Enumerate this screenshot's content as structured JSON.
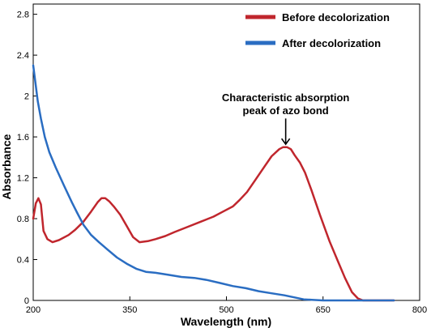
{
  "chart_data": {
    "type": "line",
    "title": "",
    "xlabel": "Wavelength (nm)",
    "ylabel": "Absorbance",
    "xlim": [
      200,
      800
    ],
    "ylim": [
      0,
      2.9
    ],
    "xticks": [
      200,
      350,
      500,
      650,
      800
    ],
    "yticks": [
      0,
      0.4,
      0.8,
      1.2,
      1.6,
      2,
      2.4,
      2.8
    ],
    "xtick_labels": [
      "200",
      "350",
      "500",
      "650",
      "800"
    ],
    "ytick_labels": [
      "0",
      "0.4",
      "0.8",
      "1.2",
      "1.6",
      "2",
      "2.4",
      "2.8"
    ],
    "grid": false,
    "legend_position": "top-right",
    "series": [
      {
        "name": "Before decolorization",
        "color": "#c0262d",
        "x": [
          200,
          204,
          208,
          212,
          216,
          222,
          230,
          240,
          255,
          265,
          278,
          290,
          300,
          306,
          312,
          318,
          325,
          335,
          345,
          355,
          365,
          378,
          390,
          405,
          420,
          440,
          460,
          480,
          495,
          510,
          520,
          532,
          545,
          558,
          570,
          582,
          588,
          594,
          600,
          606,
          614,
          622,
          632,
          645,
          660,
          672,
          684,
          695,
          704,
          712,
          730,
          760
        ],
        "values": [
          0.8,
          0.95,
          1.0,
          0.94,
          0.68,
          0.6,
          0.57,
          0.59,
          0.64,
          0.69,
          0.77,
          0.87,
          0.96,
          1.0,
          1.0,
          0.97,
          0.92,
          0.84,
          0.73,
          0.62,
          0.57,
          0.58,
          0.6,
          0.63,
          0.67,
          0.72,
          0.77,
          0.82,
          0.87,
          0.92,
          0.98,
          1.06,
          1.18,
          1.3,
          1.41,
          1.48,
          1.5,
          1.5,
          1.48,
          1.42,
          1.35,
          1.25,
          1.08,
          0.84,
          0.58,
          0.4,
          0.22,
          0.08,
          0.02,
          0.0,
          0.0,
          0.0
        ]
      },
      {
        "name": "After decolorization",
        "color": "#2a6dc2",
        "x": [
          200,
          203,
          207,
          212,
          218,
          225,
          235,
          248,
          260,
          268,
          278,
          290,
          302,
          315,
          330,
          345,
          360,
          375,
          390,
          410,
          430,
          450,
          470,
          490,
          510,
          530,
          550,
          570,
          590,
          605,
          620,
          635,
          650,
          680,
          710,
          760
        ],
        "values": [
          2.3,
          2.15,
          1.95,
          1.78,
          1.6,
          1.45,
          1.3,
          1.12,
          0.96,
          0.86,
          0.74,
          0.64,
          0.57,
          0.5,
          0.42,
          0.36,
          0.31,
          0.28,
          0.27,
          0.25,
          0.23,
          0.22,
          0.2,
          0.17,
          0.14,
          0.12,
          0.09,
          0.07,
          0.05,
          0.03,
          0.01,
          0.005,
          0.0,
          0.0,
          0.0,
          0.0
        ]
      }
    ],
    "annotations": [
      {
        "lines": [
          "Characteristic absorption",
          "peak of azo bond"
        ],
        "x": 592,
        "y_arrow_tip": 1.52,
        "y_arrow_tail": 1.78
      }
    ]
  }
}
